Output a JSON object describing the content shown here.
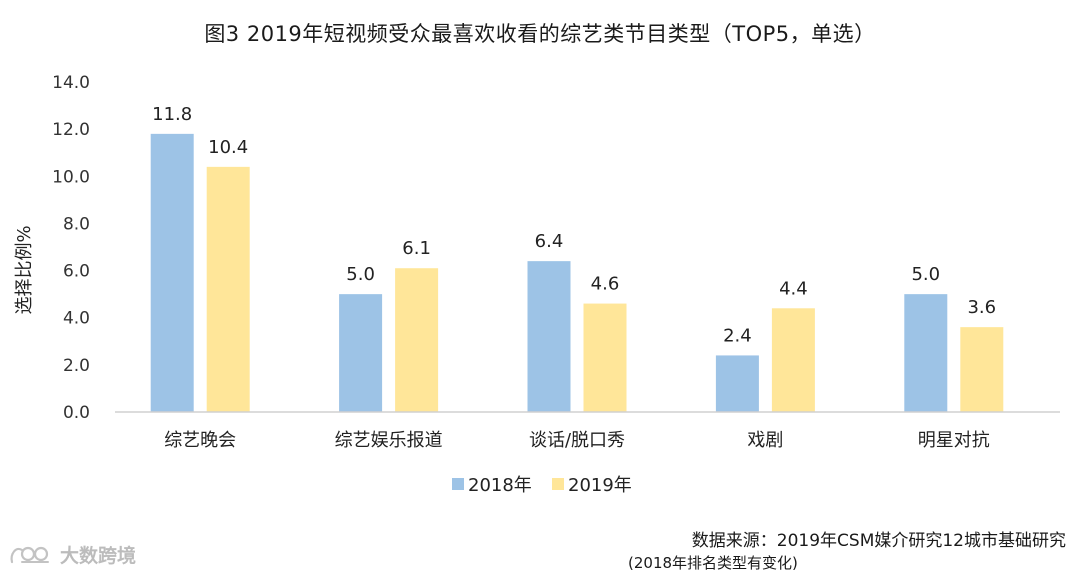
{
  "title": "图3  2019年短视频受众最喜欢收看的综艺类节目类型（TOP5，单选）",
  "chart_data": {
    "type": "bar",
    "categories": [
      "综艺晚会",
      "综艺娱乐报道",
      "谈话/脱口秀",
      "戏剧",
      "明星对抗"
    ],
    "series": [
      {
        "name": "2018年",
        "values": [
          11.8,
          5.0,
          6.4,
          2.4,
          5.0
        ],
        "color": "#9dc3e6",
        "labels": [
          "11.8",
          "5.0",
          "6.4",
          "2.4",
          "5.0"
        ]
      },
      {
        "name": "2019年",
        "values": [
          10.4,
          6.1,
          4.6,
          4.4,
          3.6
        ],
        "color": "#ffe699",
        "labels": [
          "10.4",
          "6.1",
          "4.6",
          "4.4",
          "3.6"
        ]
      }
    ],
    "ylabel": "选择比例%",
    "xlabel": "",
    "ylim": [
      0,
      14
    ],
    "yticks": [
      "0.0",
      "2.0",
      "4.0",
      "6.0",
      "8.0",
      "10.0",
      "12.0",
      "14.0"
    ],
    "grid": false,
    "legend_position": "bottom-center"
  },
  "source": {
    "line1": "数据来源：2019年CSM媒介研究12城市基础研究",
    "line2": "(2018年排名类型有变化)"
  },
  "watermark": {
    "text": "大数跨境",
    "icon": "logo-icon"
  }
}
